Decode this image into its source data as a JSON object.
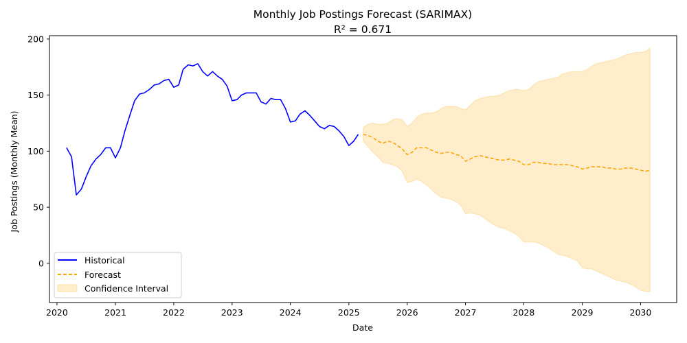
{
  "chart_data": {
    "type": "line",
    "title": "Monthly Job Postings Forecast (SARIMAX)",
    "subtitle": "R² = 0.671",
    "xlabel": "Date",
    "ylabel": "Job Postings (Monthly Mean)",
    "xlim": [
      "2019-11-15",
      "2030-08-15"
    ],
    "ylim": [
      -35,
      203
    ],
    "x_ticks": [
      "2020",
      "2021",
      "2022",
      "2023",
      "2024",
      "2025",
      "2026",
      "2027",
      "2028",
      "2029",
      "2030"
    ],
    "y_ticks": [
      0,
      50,
      100,
      150,
      200
    ],
    "grid": false,
    "legend_position": "lower-left",
    "colors": {
      "historical": "#0000ff",
      "forecast": "#ffa500",
      "ci_fill": "#ffa500"
    },
    "series": [
      {
        "name": "Historical",
        "style": "solid",
        "x": [
          "2020-03",
          "2020-04",
          "2020-05",
          "2020-06",
          "2020-07",
          "2020-08",
          "2020-09",
          "2020-10",
          "2020-11",
          "2020-12",
          "2021-01",
          "2021-02",
          "2021-03",
          "2021-04",
          "2021-05",
          "2021-06",
          "2021-07",
          "2021-08",
          "2021-09",
          "2021-10",
          "2021-11",
          "2021-12",
          "2022-01",
          "2022-02",
          "2022-03",
          "2022-04",
          "2022-05",
          "2022-06",
          "2022-07",
          "2022-08",
          "2022-09",
          "2022-10",
          "2022-11",
          "2022-12",
          "2023-01",
          "2023-02",
          "2023-03",
          "2023-04",
          "2023-05",
          "2023-06",
          "2023-07",
          "2023-08",
          "2023-09",
          "2023-10",
          "2023-11",
          "2023-12",
          "2024-01",
          "2024-02",
          "2024-03",
          "2024-04",
          "2024-05",
          "2024-06",
          "2024-07",
          "2024-08",
          "2024-09",
          "2024-10",
          "2024-11",
          "2024-12",
          "2025-01",
          "2025-02",
          "2025-03"
        ],
        "values": [
          103,
          95,
          61,
          66,
          77,
          87,
          93,
          97,
          103,
          103,
          94,
          103,
          118,
          132,
          145,
          151,
          152,
          155,
          159,
          160,
          163,
          164,
          157,
          159,
          173,
          177,
          176,
          178,
          171,
          167,
          171,
          167,
          164,
          158,
          145,
          146,
          150,
          152,
          152,
          152,
          144,
          142,
          147,
          146,
          146,
          138,
          126,
          127,
          133,
          136,
          132,
          127,
          122,
          120,
          123,
          122,
          118,
          113,
          105,
          109,
          115
        ]
      },
      {
        "name": "Forecast",
        "style": "dashed",
        "x": [
          "2025-04",
          "2025-05",
          "2025-06",
          "2025-07",
          "2025-08",
          "2025-09",
          "2025-10",
          "2025-11",
          "2025-12",
          "2026-01",
          "2026-02",
          "2026-03",
          "2026-04",
          "2026-05",
          "2026-06",
          "2026-07",
          "2026-08",
          "2026-09",
          "2026-10",
          "2026-11",
          "2026-12",
          "2027-01",
          "2027-02",
          "2027-03",
          "2027-04",
          "2027-05",
          "2027-06",
          "2027-07",
          "2027-08",
          "2027-09",
          "2027-10",
          "2027-11",
          "2027-12",
          "2028-01",
          "2028-02",
          "2028-03",
          "2028-04",
          "2028-05",
          "2028-06",
          "2028-07",
          "2028-08",
          "2028-09",
          "2028-10",
          "2028-11",
          "2028-12",
          "2029-01",
          "2029-02",
          "2029-03",
          "2029-04",
          "2029-05",
          "2029-06",
          "2029-07",
          "2029-08",
          "2029-09",
          "2029-10",
          "2029-11",
          "2029-12",
          "2030-01",
          "2030-02",
          "2030-03"
        ],
        "values": [
          115,
          114,
          112,
          109,
          107,
          109,
          108,
          105,
          102,
          97,
          99,
          103,
          103,
          103,
          101,
          99,
          98,
          99,
          99,
          97,
          96,
          91,
          93,
          95,
          96,
          95,
          94,
          93,
          92,
          92,
          93,
          92,
          91,
          88,
          88,
          90,
          90,
          89,
          89,
          88,
          88,
          88,
          88,
          87,
          86,
          84,
          85,
          86,
          86,
          86,
          85,
          85,
          84,
          84,
          85,
          85,
          84,
          83,
          82,
          83
        ]
      }
    ],
    "confidence_interval": {
      "name": "Confidence Interval",
      "x": [
        "2025-04",
        "2025-05",
        "2025-06",
        "2025-07",
        "2025-08",
        "2025-09",
        "2025-10",
        "2025-11",
        "2025-12",
        "2026-01",
        "2026-02",
        "2026-03",
        "2026-04",
        "2026-05",
        "2026-06",
        "2026-07",
        "2026-08",
        "2026-09",
        "2026-10",
        "2026-11",
        "2026-12",
        "2027-01",
        "2027-02",
        "2027-03",
        "2027-04",
        "2027-05",
        "2027-06",
        "2027-07",
        "2027-08",
        "2027-09",
        "2027-10",
        "2027-11",
        "2027-12",
        "2028-01",
        "2028-02",
        "2028-03",
        "2028-04",
        "2028-05",
        "2028-06",
        "2028-07",
        "2028-08",
        "2028-09",
        "2028-10",
        "2028-11",
        "2028-12",
        "2029-01",
        "2029-02",
        "2029-03",
        "2029-04",
        "2029-05",
        "2029-06",
        "2029-07",
        "2029-08",
        "2029-09",
        "2029-10",
        "2029-11",
        "2029-12",
        "2030-01",
        "2030-02",
        "2030-03"
      ],
      "lower": [
        109,
        104,
        99,
        95,
        90,
        89,
        88,
        86,
        82,
        72,
        73,
        75,
        73,
        70,
        66,
        62,
        59,
        58,
        57,
        55,
        52,
        44,
        45,
        44,
        43,
        40,
        37,
        34,
        32,
        31,
        29,
        27,
        24,
        19,
        19,
        19,
        18,
        16,
        14,
        11,
        8,
        7,
        6,
        4,
        2,
        -4,
        -5,
        -5,
        -7,
        -9,
        -11,
        -13,
        -15,
        -16,
        -17,
        -19,
        -21,
        -24,
        -25,
        -25
      ],
      "upper": [
        121,
        124,
        125,
        124,
        124,
        125,
        128,
        129,
        128,
        122,
        125,
        130,
        133,
        134,
        134,
        135,
        138,
        140,
        140,
        140,
        138,
        137,
        141,
        145,
        147,
        148,
        149,
        149,
        150,
        152,
        154,
        155,
        155,
        154,
        155,
        159,
        162,
        163,
        164,
        165,
        166,
        169,
        170,
        171,
        171,
        171,
        173,
        176,
        178,
        179,
        180,
        181,
        182,
        184,
        186,
        187,
        188,
        188,
        189,
        192
      ]
    }
  }
}
